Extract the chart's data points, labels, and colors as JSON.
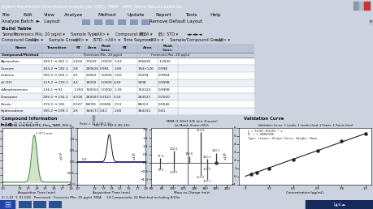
{
  "title_bar": "Agilent MassHunter Quantitative Analysis (for QQQ) - MRM - mRM_Demo_Results.batch.bin",
  "menu_items": [
    "File",
    "Edit",
    "View",
    "Analyze",
    "Method",
    "Update",
    "Report",
    "Tools",
    "Help"
  ],
  "bg_main": "#cdd3de",
  "bg_titlebar": "#6a8ab8",
  "bg_menu": "#ece9d8",
  "bg_toolbar": "#ece9d8",
  "bg_filter": "#cdd8e8",
  "bg_table_header": "#b8c4d4",
  "bg_table_sub": "#c8d0dc",
  "bg_table_even": "#ffffff",
  "bg_table_odd": "#eef0f8",
  "bg_panel_label": "#a8b8cc",
  "bg_plot": "#ffffff",
  "bg_status": "#c8d0dc",
  "bg_taskbar": "#1c3c6c",
  "bg_right_panel": "#dde4ef",
  "text_dark": "#111111",
  "text_white": "#ffffff",
  "chr1_fill": "#c8e0c0",
  "chr1_line": "#3a7a3a",
  "chr2_line": "#111111",
  "chr2_baseline": "#3333bb",
  "cal_line": "#222222",
  "table_rows": [
    [
      "Alprazolam",
      "309.1 → 281.1",
      "2.426",
      "71549",
      "1.0032",
      "2.43",
      "256626",
      "1.0045"
    ],
    [
      "Cocaine",
      "304.2 → 182.1",
      "2.8",
      "200626",
      "0.991",
      "2.80",
      "194+126",
      "0.998"
    ],
    [
      "Codeine",
      "300.2 → 165.1",
      "2.5",
      "21055",
      "1.0000",
      "2.50",
      "21094",
      "0.9994"
    ],
    [
      "d5-THC",
      "315.2 → 193.1",
      "4.4",
      "10000",
      "1.0000",
      "4.40",
      "9998",
      "0.9998"
    ],
    [
      "d-Amphetamine",
      "136.1 → 91",
      "1.393",
      "750502",
      "1.0000",
      "1.39",
      "750224",
      "0.9998"
    ],
    [
      "Diazepam",
      "285.1 → 154.1",
      "4.318",
      "264925",
      "0.2021",
      "4.32",
      "264521",
      "0.2020"
    ],
    [
      "Heroin",
      "370.2 → 165",
      "2.507",
      "86091",
      "0.0046",
      "2.51",
      "86023",
      "0.0046"
    ],
    [
      "Hydrocodone",
      "300.2 → 199.1",
      "2.6",
      "364271",
      "0.41",
      "2.60",
      "364231",
      "0.41"
    ]
  ],
  "status_text": "X: 1.22  Y: 91.028   Processed   Forensics Mix, 20 pg/ul  MDA     24 Compounds, 24 Matched including 8/24x",
  "cal_eq": "y = 52765.301209 * x\nR² = 1.00000000\nType: Linear, Origin Force, Weight: None"
}
